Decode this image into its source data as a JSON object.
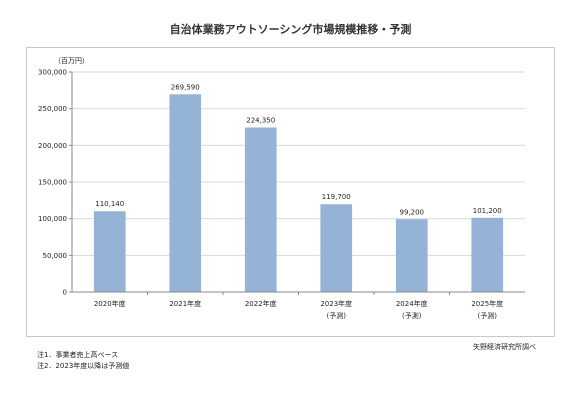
{
  "chart_data": {
    "type": "bar",
    "title": "自治体業務アウトソーシング市場規模推移・予測",
    "unit_label": "（百万円）",
    "categories": [
      "2020年度",
      "2021年度",
      "2022年度",
      "2023年度",
      "2024年度",
      "2025年度"
    ],
    "category_sublabels": [
      "",
      "",
      "",
      "(予測)",
      "(予測)",
      "(予測)"
    ],
    "values": [
      110140,
      269590,
      224350,
      119700,
      99200,
      101200
    ],
    "value_labels": [
      "110,140",
      "269,590",
      "224,350",
      "119,700",
      "99,200",
      "101,200"
    ],
    "ylim": [
      0,
      300000
    ],
    "yticks": [
      0,
      50000,
      100000,
      150000,
      200000,
      250000,
      300000
    ],
    "ytick_labels": [
      "0",
      "50,000",
      "100,000",
      "150,000",
      "200,000",
      "250,000",
      "300,000"
    ],
    "grid": true,
    "bar_color": "#95b3d7",
    "grid_color": "#d9d9d9"
  },
  "notes": [
    "注1．事業者売上高ベース",
    "注2．2023年度以降は予測値"
  ],
  "source": "矢野経済研究所調べ"
}
